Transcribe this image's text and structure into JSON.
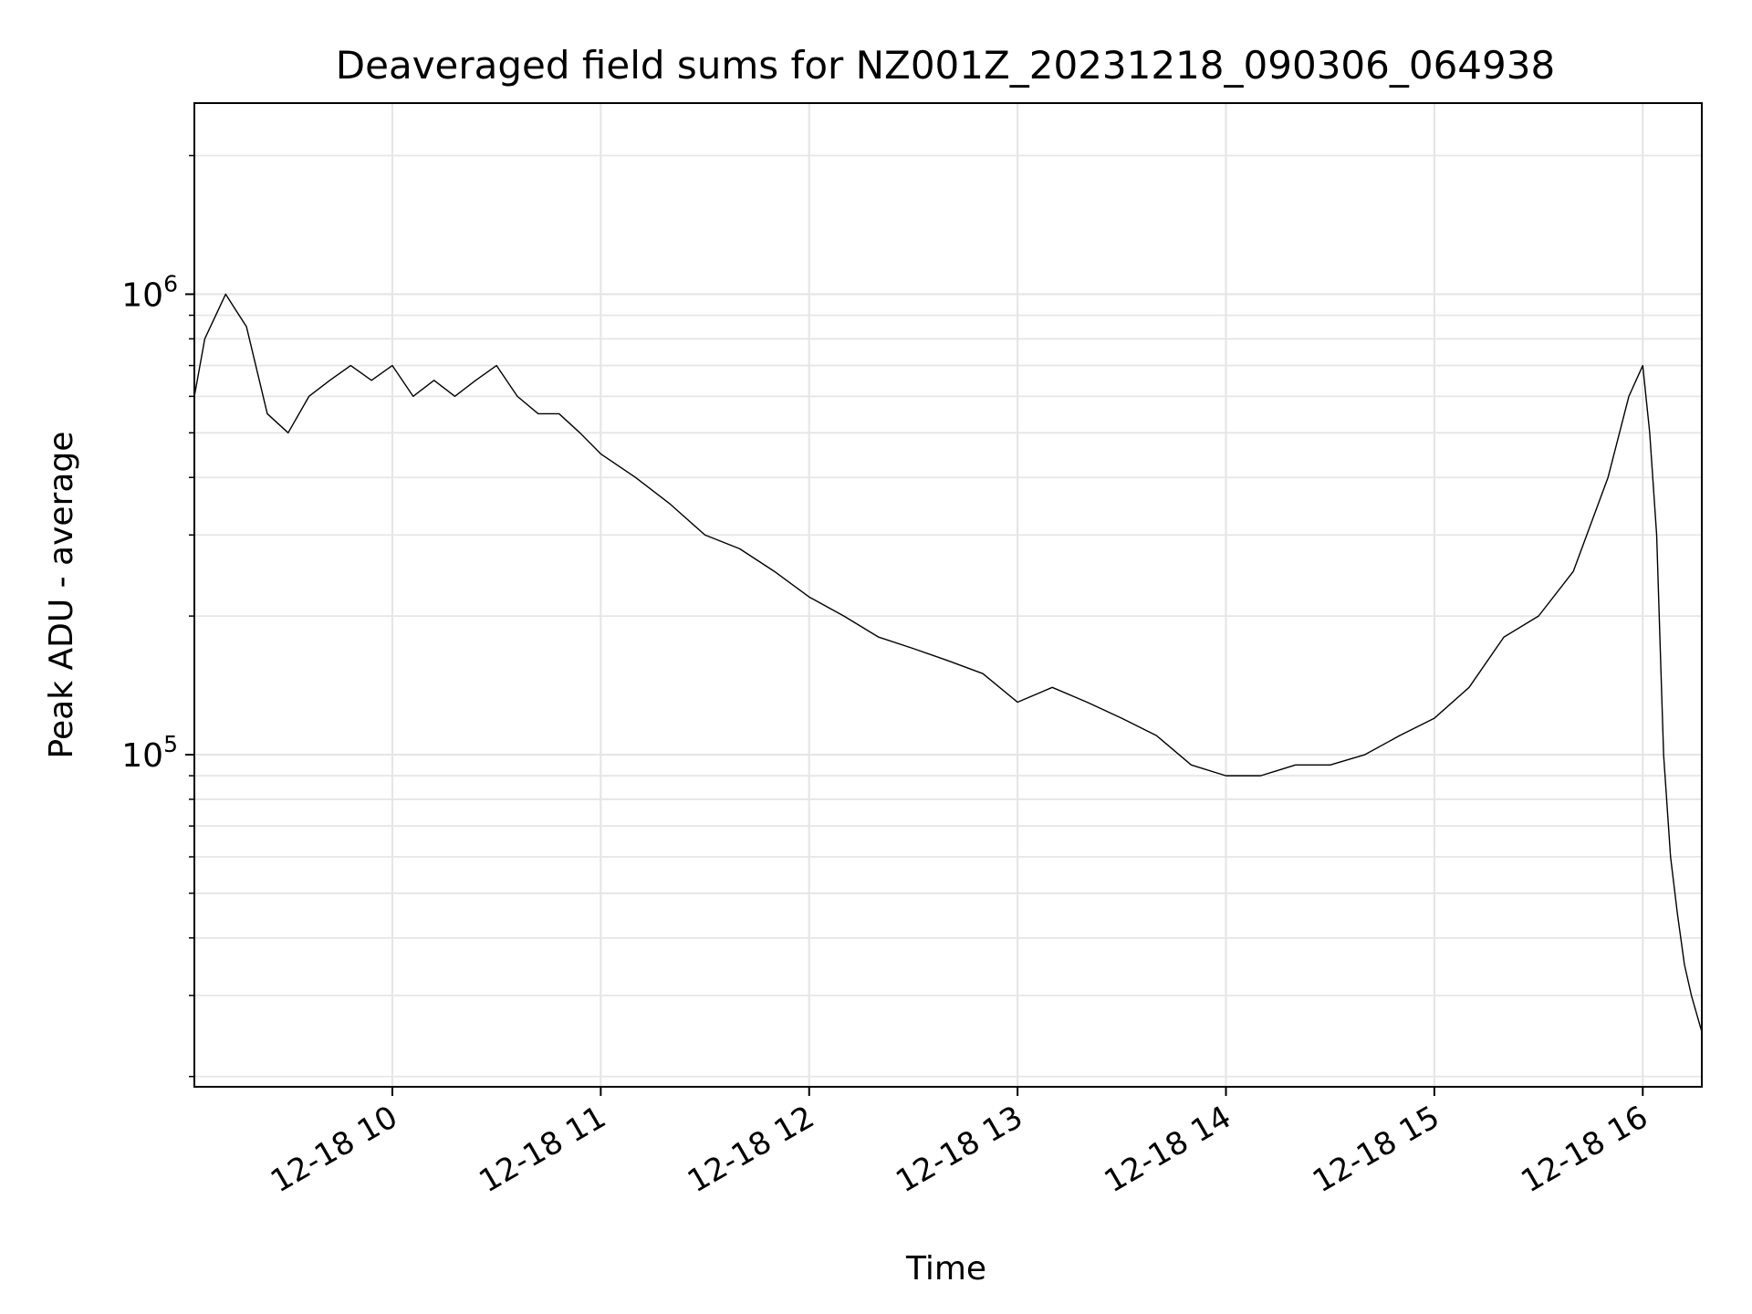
{
  "chart_data": {
    "type": "line",
    "title": "Deaveraged field sums for NZ001Z_20231218_090306_064938",
    "xlabel": "Time",
    "ylabel": "Peak ADU - average",
    "y_scale": "log",
    "ylim": [
      19000,
      2600000
    ],
    "xlim": [
      "12-18 09:03",
      "12-18 16:17"
    ],
    "x_ticks": [
      "12-18 10",
      "12-18 11",
      "12-18 12",
      "12-18 13",
      "12-18 14",
      "12-18 15",
      "12-18 16"
    ],
    "y_ticks": [
      {
        "base": "10",
        "exp": "5",
        "value": 100000
      },
      {
        "base": "10",
        "exp": "6",
        "value": 1000000
      }
    ],
    "grid": true,
    "line_color": "#000000",
    "grid_color": "#e6e6e6",
    "series": [
      {
        "x": [
          "12-18 09:03",
          "12-18 09:06",
          "12-18 09:12",
          "12-18 09:18",
          "12-18 09:24",
          "12-18 09:30",
          "12-18 09:36",
          "12-18 09:42",
          "12-18 09:48",
          "12-18 09:54",
          "12-18 10:00",
          "12-18 10:06",
          "12-18 10:12",
          "12-18 10:18",
          "12-18 10:24",
          "12-18 10:30",
          "12-18 10:36",
          "12-18 10:42",
          "12-18 10:48",
          "12-18 10:54",
          "12-18 11:00",
          "12-18 11:10",
          "12-18 11:20",
          "12-18 11:30",
          "12-18 11:40",
          "12-18 11:50",
          "12-18 12:00",
          "12-18 12:10",
          "12-18 12:20",
          "12-18 12:30",
          "12-18 12:40",
          "12-18 12:50",
          "12-18 13:00",
          "12-18 13:10",
          "12-18 13:20",
          "12-18 13:30",
          "12-18 13:40",
          "12-18 13:50",
          "12-18 14:00",
          "12-18 14:10",
          "12-18 14:20",
          "12-18 14:30",
          "12-18 14:40",
          "12-18 14:50",
          "12-18 15:00",
          "12-18 15:10",
          "12-18 15:20",
          "12-18 15:30",
          "12-18 15:40",
          "12-18 15:50",
          "12-18 15:56",
          "12-18 16:00",
          "12-18 16:02",
          "12-18 16:04",
          "12-18 16:06",
          "12-18 16:08",
          "12-18 16:10",
          "12-18 16:12",
          "12-18 16:14",
          "12-18 16:17"
        ],
        "y": [
          600000,
          800000,
          1000000,
          850000,
          550000,
          500000,
          600000,
          650000,
          700000,
          650000,
          700000,
          600000,
          650000,
          600000,
          650000,
          700000,
          600000,
          550000,
          550000,
          500000,
          450000,
          400000,
          350000,
          300000,
          280000,
          250000,
          220000,
          200000,
          180000,
          170000,
          160000,
          150000,
          130000,
          140000,
          130000,
          120000,
          110000,
          95000,
          90000,
          90000,
          95000,
          95000,
          100000,
          110000,
          120000,
          140000,
          180000,
          200000,
          250000,
          400000,
          600000,
          700000,
          500000,
          300000,
          100000,
          60000,
          45000,
          35000,
          30000,
          25000
        ]
      }
    ]
  }
}
